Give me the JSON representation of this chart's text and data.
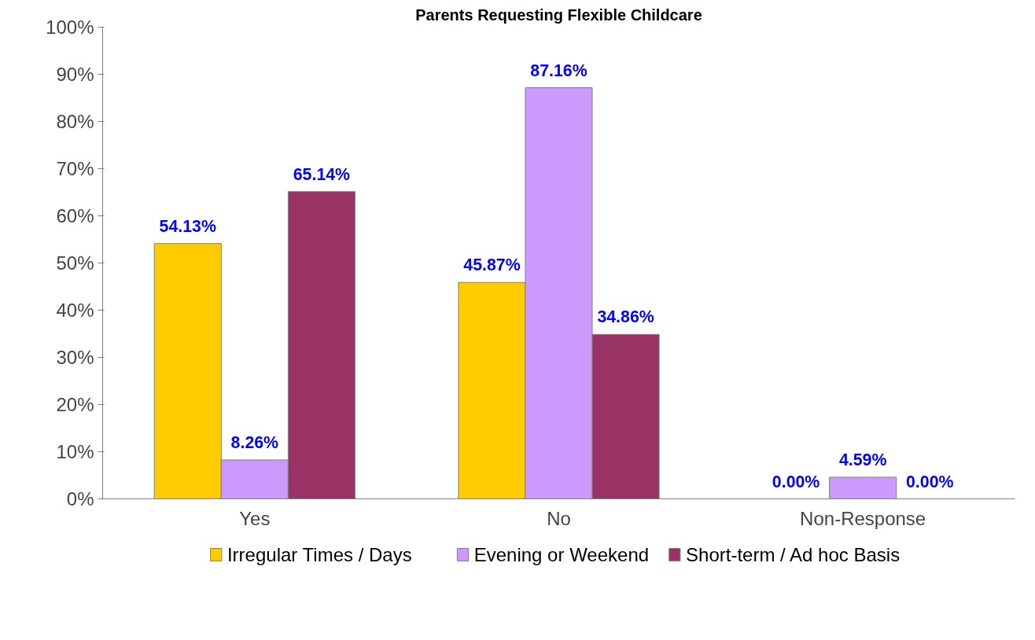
{
  "chart_data": {
    "type": "bar",
    "title": "Parents Requesting Flexible Childcare",
    "categories": [
      "Yes",
      "No",
      "Non-Response"
    ],
    "series": [
      {
        "name": "Irregular Times / Days",
        "color": "#ffcc00",
        "values": [
          54.13,
          45.87,
          0
        ],
        "value_labels": [
          "54.13%",
          "45.87%",
          "0.00%"
        ]
      },
      {
        "name": "Evening or Weekend",
        "color": "#cc99ff",
        "values": [
          8.26,
          87.16,
          4.59
        ],
        "value_labels": [
          "8.26%",
          "87.16%",
          "4.59%"
        ]
      },
      {
        "name": "Short-term / Ad hoc Basis",
        "color": "#993366",
        "values": [
          65.14,
          34.86,
          0
        ],
        "value_labels": [
          "65.14%",
          "34.86%",
          "0.00%"
        ]
      }
    ],
    "ylim": [
      0,
      100
    ],
    "yticks": [
      {
        "value": 0,
        "label": "0%"
      },
      {
        "value": 10,
        "label": "10%"
      },
      {
        "value": 20,
        "label": "20%"
      },
      {
        "value": 30,
        "label": "30%"
      },
      {
        "value": 40,
        "label": "40%"
      },
      {
        "value": 50,
        "label": "50%"
      },
      {
        "value": 60,
        "label": "60%"
      },
      {
        "value": 70,
        "label": "70%"
      },
      {
        "value": 80,
        "label": "80%"
      },
      {
        "value": 90,
        "label": "90%"
      },
      {
        "value": 100,
        "label": "100%"
      }
    ],
    "grid": false,
    "legend": "bottom"
  }
}
